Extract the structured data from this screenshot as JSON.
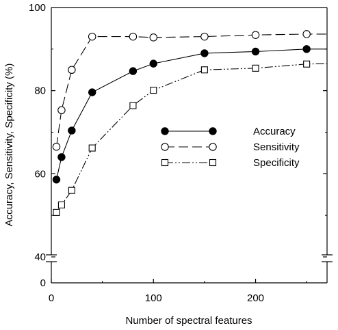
{
  "chart_data": {
    "type": "line",
    "title": "",
    "xlabel": "Number of spectral features",
    "ylabel": "Accuracy, Sensitivity, Specificity  (%)",
    "xlim": [
      0,
      270
    ],
    "ylim": [
      0,
      100
    ],
    "y_axis_break": [
      0,
      40
    ],
    "xticks": [
      0,
      100,
      200
    ],
    "xtick_labels": [
      "0",
      "100",
      "200"
    ],
    "yticks": [
      0,
      40,
      60,
      80,
      100
    ],
    "ytick_labels": [
      "0",
      "40",
      "60",
      "80",
      "100"
    ],
    "grid": false,
    "legend_position": "center-right",
    "series": [
      {
        "name": "Accuracy",
        "marker": "filled-circle",
        "line_style": "solid",
        "color": "#000000",
        "x": [
          5,
          10,
          20,
          40,
          80,
          100,
          150,
          200,
          250
        ],
        "y": [
          58.6,
          64.0,
          70.4,
          79.6,
          84.7,
          86.5,
          89.0,
          89.4,
          90.0
        ]
      },
      {
        "name": "Sensitivity",
        "marker": "open-circle",
        "line_style": "dashed",
        "color": "#000000",
        "x": [
          5,
          10,
          20,
          40,
          80,
          100,
          150,
          200,
          250
        ],
        "y": [
          66.5,
          75.3,
          85.0,
          93.0,
          93.0,
          92.8,
          93.0,
          93.4,
          93.6
        ]
      },
      {
        "name": "Specificity",
        "marker": "open-square",
        "line_style": "dash-dot-dot",
        "color": "#000000",
        "x": [
          5,
          10,
          20,
          40,
          80,
          100,
          150,
          200,
          250
        ],
        "y": [
          50.7,
          52.5,
          56.0,
          66.2,
          76.4,
          80.1,
          85.0,
          85.4,
          86.4
        ]
      }
    ]
  }
}
